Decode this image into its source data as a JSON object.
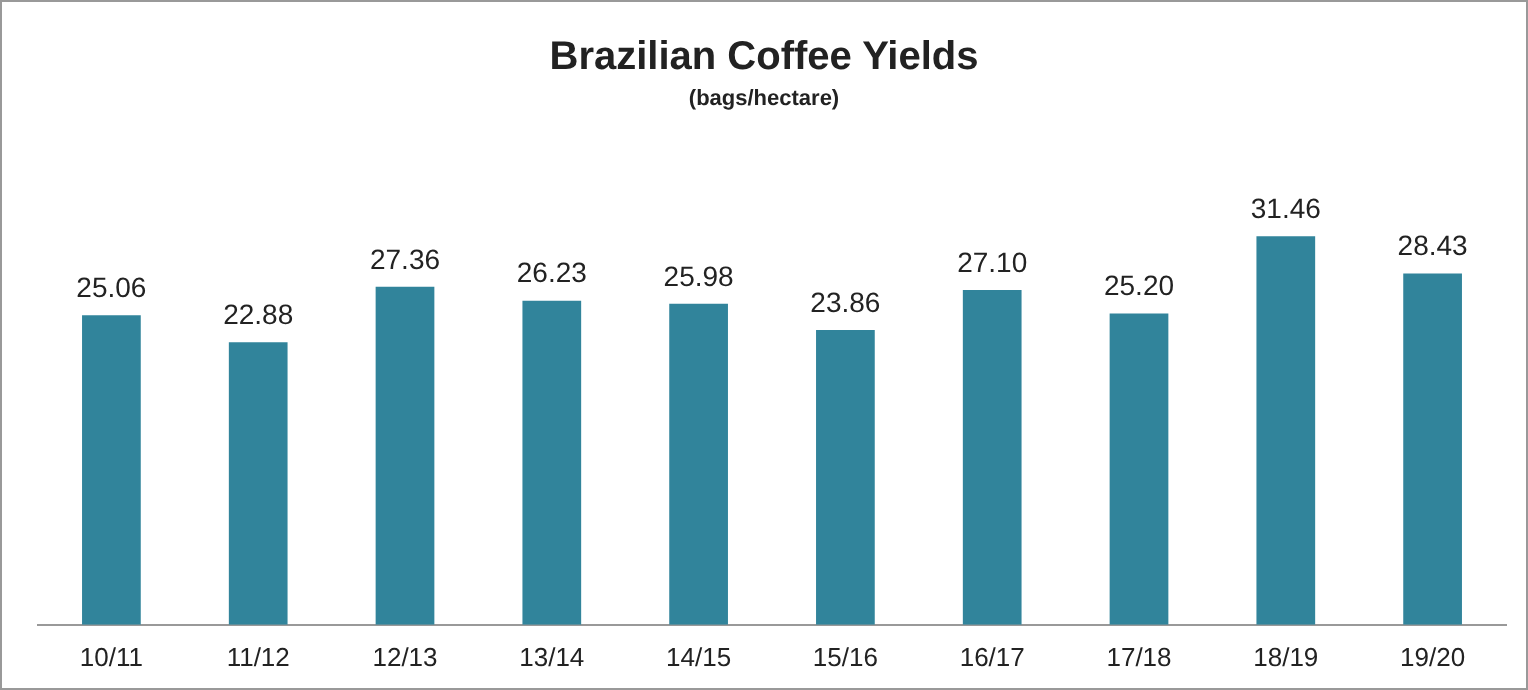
{
  "chart_data": {
    "type": "bar",
    "title": "Brazilian Coffee Yields",
    "subtitle": "(bags/hectare)",
    "categories": [
      "10/11",
      "11/12",
      "12/13",
      "13/14",
      "14/15",
      "15/16",
      "16/17",
      "17/18",
      "18/19",
      "19/20"
    ],
    "values": [
      25.06,
      22.88,
      27.36,
      26.23,
      25.98,
      23.86,
      27.1,
      25.2,
      31.46,
      28.43
    ],
    "value_labels": [
      "25.06",
      "22.88",
      "27.36",
      "26.23",
      "25.98",
      "23.86",
      "27.10",
      "25.20",
      "31.46",
      "28.43"
    ],
    "color": "#31849b",
    "relative": false,
    "grid": false,
    "legend": false
  }
}
